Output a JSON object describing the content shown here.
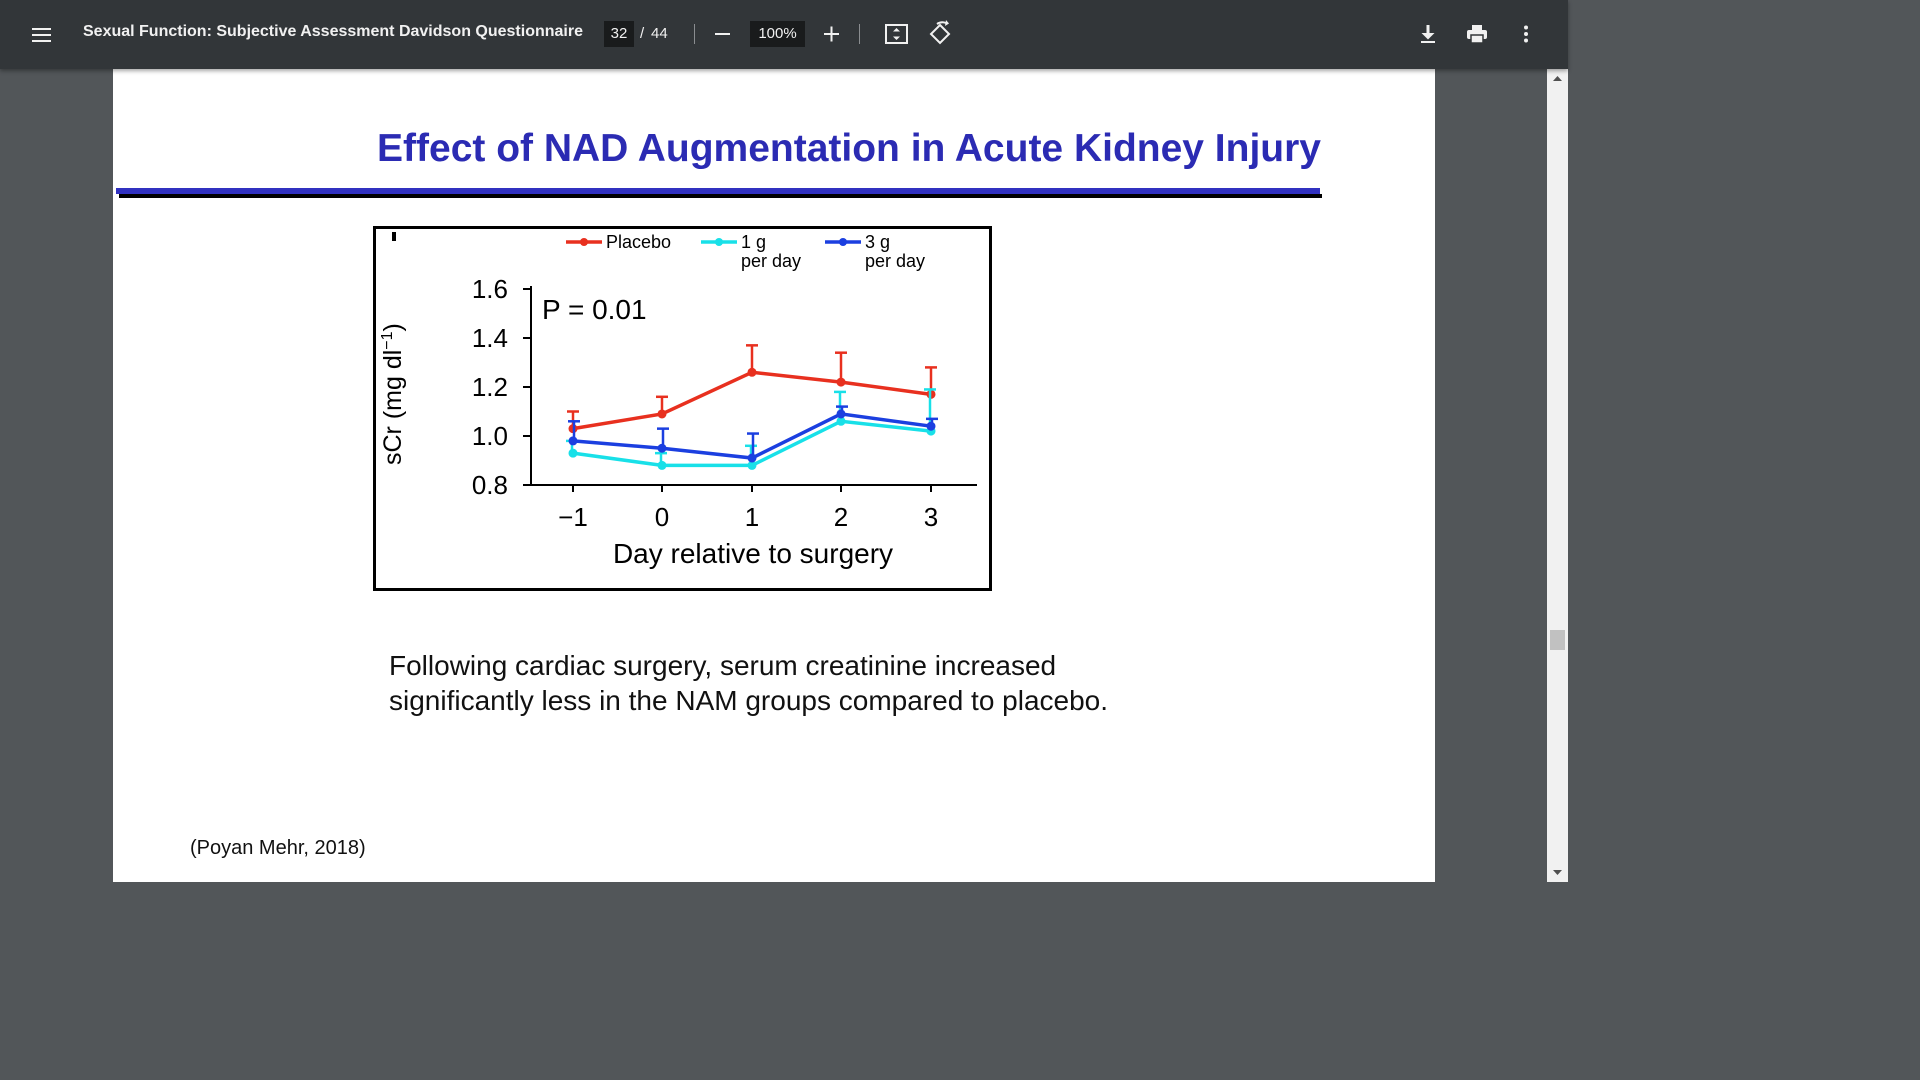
{
  "toolbar": {
    "title": "Sexual Function: Subjective Assessment Davidson Questionnaire",
    "page_current": "32",
    "page_separator": "/",
    "page_total": "44",
    "zoom": "100%"
  },
  "slide": {
    "title": "Effect of NAD Augmentation in Acute Kidney Injury",
    "caption_line1": "Following cardiac surgery, serum creatinine increased",
    "caption_line2": "significantly less in the NAM groups compared to placebo.",
    "citation": "(Poyan Mehr, 2018)"
  },
  "chart_data": {
    "type": "line",
    "x": [
      -1,
      0,
      1,
      2,
      3
    ],
    "x_tick_labels": [
      "−1",
      "0",
      "1",
      "2",
      "3"
    ],
    "xlabel": "Day relative to surgery",
    "ylabel_main": "sCr (mg dl",
    "ylabel_sup": "−1",
    "ylabel_close": ")",
    "ylim": [
      0.8,
      1.6
    ],
    "y_ticks": [
      0.8,
      1.0,
      1.2,
      1.4,
      1.6
    ],
    "y_tick_labels": [
      "0.8",
      "1.0",
      "1.2",
      "1.4",
      "1.6"
    ],
    "annotation": "P = 0.01",
    "legend_position": "top",
    "series": [
      {
        "name": "Placebo",
        "name_line2": "",
        "color": "#e8301f",
        "values": [
          1.03,
          1.09,
          1.26,
          1.22,
          1.17
        ],
        "error_upper": [
          1.1,
          1.16,
          1.37,
          1.34,
          1.28
        ]
      },
      {
        "name": "1 g",
        "name_line2": "per day",
        "color": "#18e0e8",
        "values": [
          0.93,
          0.88,
          0.88,
          1.06,
          1.02
        ],
        "error_upper": [
          0.98,
          0.93,
          0.96,
          1.18,
          1.19
        ]
      },
      {
        "name": "3 g",
        "name_line2": "per day",
        "color": "#1b3fe0",
        "values": [
          0.98,
          0.95,
          0.91,
          1.09,
          1.04
        ],
        "error_upper": [
          1.06,
          1.03,
          1.01,
          1.12,
          1.07
        ]
      }
    ]
  }
}
